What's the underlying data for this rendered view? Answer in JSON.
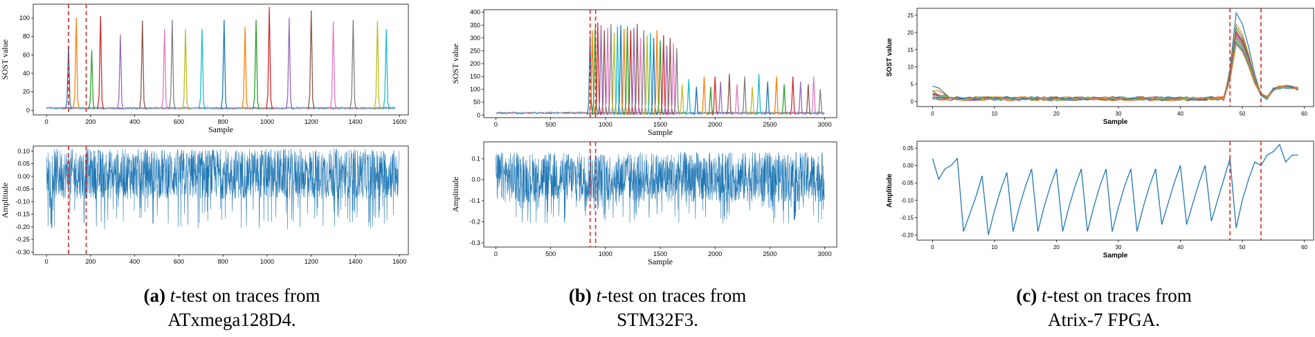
{
  "colors": {
    "trace": "#1f77b4",
    "marker": "#d62728",
    "palette": [
      "#1f77b4",
      "#ff7f0e",
      "#2ca02c",
      "#d62728",
      "#9467bd",
      "#8c564b",
      "#e377c2",
      "#7f7f7f",
      "#bcbd22",
      "#17becf"
    ]
  },
  "captions": [
    {
      "letter": "(a)",
      "t": "t",
      "rest": "-test on traces from",
      "line2": "ATxmega128D4."
    },
    {
      "letter": "(b)",
      "t": "t",
      "rest": "-test on traces from",
      "line2": "STM32F3."
    },
    {
      "letter": "(c)",
      "t": "t",
      "rest": "-test on traces from",
      "line2": "Atrix-7 FPGA."
    }
  ],
  "chart_data": [
    {
      "id": "a-top",
      "type": "line",
      "title": "",
      "xlabel": "Sample",
      "ylabel": "SOST value",
      "xlim": [
        -60,
        1640
      ],
      "ylim": [
        -5,
        115
      ],
      "xticks": [
        0,
        200,
        400,
        600,
        800,
        1000,
        1200,
        1400,
        1600
      ],
      "yticks": [
        0,
        20,
        40,
        60,
        80,
        100
      ],
      "markers": [
        100,
        180
      ],
      "peaks": [
        {
          "x": 100,
          "h": 70
        },
        {
          "x": 135,
          "h": 100
        },
        {
          "x": 205,
          "h": 65
        },
        {
          "x": 245,
          "h": 102
        },
        {
          "x": 335,
          "h": 82
        },
        {
          "x": 435,
          "h": 97
        },
        {
          "x": 535,
          "h": 88
        },
        {
          "x": 570,
          "h": 98
        },
        {
          "x": 630,
          "h": 88
        },
        {
          "x": 705,
          "h": 88
        },
        {
          "x": 805,
          "h": 98
        },
        {
          "x": 900,
          "h": 90
        },
        {
          "x": 950,
          "h": 98
        },
        {
          "x": 1010,
          "h": 112
        },
        {
          "x": 1100,
          "h": 100
        },
        {
          "x": 1200,
          "h": 108
        },
        {
          "x": 1300,
          "h": 96
        },
        {
          "x": 1390,
          "h": 98
        },
        {
          "x": 1500,
          "h": 97
        },
        {
          "x": 1540,
          "h": 88
        }
      ]
    },
    {
      "id": "a-bot",
      "type": "line",
      "title": "",
      "xlabel": "",
      "ylabel": "Amplitude",
      "xlim": [
        -60,
        1640
      ],
      "ylim": [
        -0.31,
        0.12
      ],
      "xticks": [
        0,
        200,
        400,
        600,
        800,
        1000,
        1200,
        1400,
        1600
      ],
      "yticks": [
        0.1,
        0.05,
        0.0,
        -0.05,
        -0.1,
        -0.15,
        -0.2,
        -0.25,
        -0.3
      ],
      "markers": [
        100,
        180
      ],
      "n": 1600,
      "base": 0.0,
      "noise": 0.1,
      "dipFreq": 0.06,
      "dipDepth": -0.2
    },
    {
      "id": "b-top",
      "type": "line",
      "title": "",
      "xlabel": "Sample",
      "ylabel": "SOST value",
      "xlim": [
        -110,
        3110
      ],
      "ylim": [
        -10,
        410
      ],
      "xticks": [
        0,
        500,
        1000,
        1500,
        2000,
        2500,
        3000
      ],
      "yticks": [
        0,
        50,
        100,
        150,
        200,
        250,
        300,
        350,
        400
      ],
      "markers": [
        860,
        910
      ],
      "peaks": [
        {
          "x": 860,
          "h": 310
        },
        {
          "x": 880,
          "h": 330
        },
        {
          "x": 905,
          "h": 340
        },
        {
          "x": 930,
          "h": 360
        },
        {
          "x": 960,
          "h": 350
        },
        {
          "x": 990,
          "h": 330
        },
        {
          "x": 1020,
          "h": 340
        },
        {
          "x": 1050,
          "h": 355
        },
        {
          "x": 1080,
          "h": 320
        },
        {
          "x": 1110,
          "h": 345
        },
        {
          "x": 1140,
          "h": 350
        },
        {
          "x": 1170,
          "h": 335
        },
        {
          "x": 1200,
          "h": 345
        },
        {
          "x": 1230,
          "h": 330
        },
        {
          "x": 1260,
          "h": 340
        },
        {
          "x": 1290,
          "h": 355
        },
        {
          "x": 1320,
          "h": 300
        },
        {
          "x": 1350,
          "h": 330
        },
        {
          "x": 1380,
          "h": 310
        },
        {
          "x": 1410,
          "h": 320
        },
        {
          "x": 1440,
          "h": 300
        },
        {
          "x": 1470,
          "h": 330
        },
        {
          "x": 1500,
          "h": 290
        },
        {
          "x": 1530,
          "h": 310
        },
        {
          "x": 1560,
          "h": 270
        },
        {
          "x": 1590,
          "h": 300
        },
        {
          "x": 1620,
          "h": 280
        },
        {
          "x": 1650,
          "h": 260
        },
        {
          "x": 1700,
          "h": 120
        },
        {
          "x": 1760,
          "h": 140
        },
        {
          "x": 1830,
          "h": 110
        },
        {
          "x": 1900,
          "h": 150
        },
        {
          "x": 1960,
          "h": 110
        },
        {
          "x": 2000,
          "h": 150
        },
        {
          "x": 2050,
          "h": 130
        },
        {
          "x": 2130,
          "h": 160
        },
        {
          "x": 2200,
          "h": 120
        },
        {
          "x": 2270,
          "h": 150
        },
        {
          "x": 2340,
          "h": 110
        },
        {
          "x": 2400,
          "h": 160
        },
        {
          "x": 2480,
          "h": 130
        },
        {
          "x": 2560,
          "h": 150
        },
        {
          "x": 2630,
          "h": 120
        },
        {
          "x": 2710,
          "h": 150
        },
        {
          "x": 2780,
          "h": 130
        },
        {
          "x": 2850,
          "h": 120
        },
        {
          "x": 2900,
          "h": 150
        },
        {
          "x": 2960,
          "h": 100
        }
      ]
    },
    {
      "id": "b-bot",
      "type": "line",
      "title": "",
      "xlabel": "Sample",
      "ylabel": "Amplitude",
      "xlim": [
        -110,
        3110
      ],
      "ylim": [
        -0.32,
        0.18
      ],
      "xticks": [
        0,
        500,
        1000,
        1500,
        2000,
        2500,
        3000
      ],
      "yticks": [
        0.1,
        0.0,
        -0.1,
        -0.2,
        -0.3
      ],
      "markers": [
        860,
        910
      ],
      "n": 3000,
      "base": 0.0,
      "noise": 0.12,
      "dipFreq": 0.05,
      "dipDepth": -0.2
    },
    {
      "id": "c-top",
      "type": "line",
      "title": "",
      "xlabel": "Sample",
      "ylabel": "SOST value",
      "xlim": [
        -2.5,
        61.5
      ],
      "ylim": [
        -1.5,
        27
      ],
      "xticks": [
        0,
        10,
        20,
        30,
        40,
        50,
        60
      ],
      "yticks": [
        0,
        5,
        10,
        15,
        20,
        25
      ],
      "markers": [
        48,
        53
      ],
      "peakStart": 48,
      "peakTop": 49.5,
      "peakEnd": 53,
      "peakHeights": [
        26.5,
        23,
        22,
        21,
        20.5,
        20,
        19.5,
        19,
        18.5,
        18,
        17.5,
        17
      ],
      "startLevels": [
        4.0,
        2.5,
        2.0,
        1.6,
        1.3,
        1.0,
        0.8,
        0.6,
        0.4,
        0.2,
        0.1,
        0.0
      ]
    },
    {
      "id": "c-bot",
      "type": "line",
      "title": "",
      "xlabel": "Sample",
      "ylabel": "Amplitude",
      "xlim": [
        -2.5,
        61.5
      ],
      "ylim": [
        -0.215,
        0.07
      ],
      "xticks": [
        0,
        10,
        20,
        30,
        40,
        50,
        60
      ],
      "yticks": [
        0.05,
        0.0,
        -0.05,
        -0.1,
        -0.15,
        -0.2
      ],
      "markers": [
        48,
        53
      ],
      "x": [
        0,
        1,
        2,
        3,
        4,
        5,
        6,
        7,
        8,
        9,
        10,
        11,
        12,
        13,
        14,
        15,
        16,
        17,
        18,
        19,
        20,
        21,
        22,
        23,
        24,
        25,
        26,
        27,
        28,
        29,
        30,
        31,
        32,
        33,
        34,
        35,
        36,
        37,
        38,
        39,
        40,
        41,
        42,
        43,
        44,
        45,
        46,
        47,
        48,
        49,
        50,
        51,
        52,
        53,
        54,
        55,
        56,
        57,
        58,
        59
      ],
      "y": [
        0.02,
        -0.04,
        -0.01,
        0.0,
        0.02,
        -0.19,
        -0.14,
        -0.09,
        -0.03,
        -0.2,
        -0.13,
        -0.07,
        -0.02,
        -0.19,
        -0.12,
        -0.06,
        -0.01,
        -0.19,
        -0.12,
        -0.06,
        -0.01,
        -0.19,
        -0.12,
        -0.06,
        -0.01,
        -0.19,
        -0.12,
        -0.06,
        -0.01,
        -0.19,
        -0.12,
        -0.06,
        -0.01,
        -0.19,
        -0.12,
        -0.06,
        -0.01,
        -0.17,
        -0.11,
        -0.05,
        0.0,
        -0.17,
        -0.11,
        -0.05,
        0.0,
        -0.16,
        -0.1,
        -0.04,
        0.02,
        -0.18,
        -0.1,
        -0.04,
        0.01,
        0.0,
        0.03,
        0.04,
        0.06,
        0.01,
        0.03,
        0.03
      ]
    }
  ]
}
